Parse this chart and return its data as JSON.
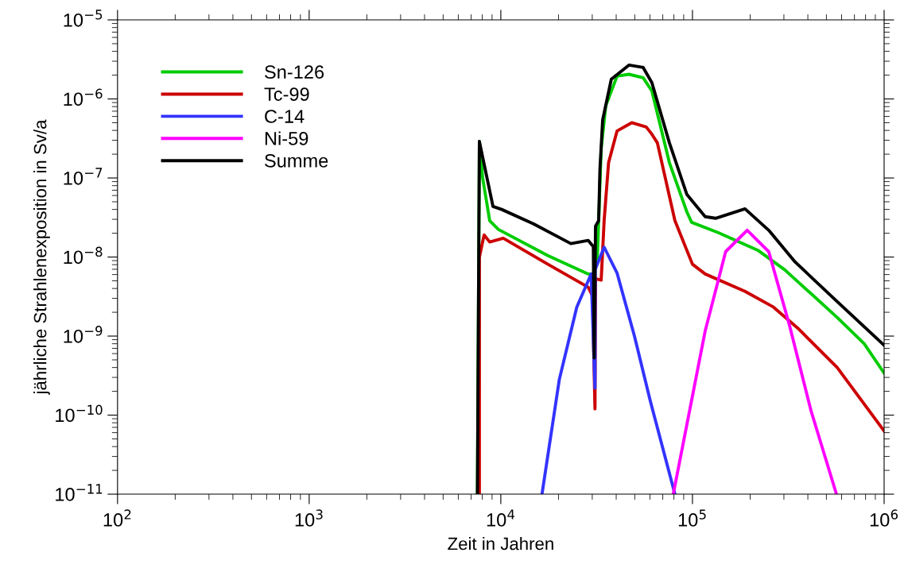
{
  "chart_data": {
    "type": "line",
    "xlabel": "Zeit in Jahren",
    "ylabel": "jährliche Strahlenexposition in Sv/a",
    "log": "xy",
    "grid": false,
    "legend": "top left",
    "marker": "none",
    "line_style": "solid",
    "xlim": [
      100,
      1000000
    ],
    "ylim": [
      1e-11,
      1e-05
    ],
    "xticks": [
      {
        "value": 100,
        "label": "10$^{2}$"
      },
      {
        "value": 1000,
        "label": "10$^{3}$"
      },
      {
        "value": 10000,
        "label": "10$^{4}$"
      },
      {
        "value": 100000,
        "label": "10$^{5}$"
      },
      {
        "value": 1000000,
        "label": "10$^{6}$"
      }
    ],
    "yticks": [
      {
        "value": 1e-11,
        "label": "10$^{−11}$"
      },
      {
        "value": 1e-10,
        "label": "10$^{−10}$"
      },
      {
        "value": 1e-09,
        "label": "10$^{−9}$"
      },
      {
        "value": 1e-08,
        "label": "10$^{−8}$"
      },
      {
        "value": 1e-07,
        "label": "10$^{−7}$"
      },
      {
        "value": 1e-06,
        "label": "10$^{−6}$"
      },
      {
        "value": 1e-05,
        "label": "10$^{−5}$"
      }
    ],
    "series": [
      {
        "name": "Sn-126",
        "color": "#00cc00",
        "x": [
          7550,
          7730,
          8040,
          8750,
          9720,
          17600,
          28600,
          30300,
          31800,
          32400,
          33400,
          35300,
          40400,
          46600,
          55300,
          61400,
          75800,
          93500,
          99000,
          136000,
          219000,
          303000,
          569000,
          787000,
          1000000
        ],
        "values": [
          1e-11,
          2.9e-07,
          1e-07,
          2.88e-08,
          2.23e-08,
          1.04e-08,
          6.1e-09,
          6.1e-09,
          8.5e-09,
          2.88e-08,
          2.36e-07,
          8.2e-07,
          1.94e-06,
          2.05e-06,
          1.85e-06,
          1.26e-06,
          1.56e-07,
          3.72e-08,
          2.75e-08,
          2.04e-08,
          1.22e-08,
          6.9e-09,
          1.72e-09,
          8e-10,
          3.4e-10
        ]
      },
      {
        "name": "Tc-99",
        "color": "#cc0000",
        "x": [
          7730,
          7731,
          8180,
          8750,
          10300,
          17600,
          28600,
          30100,
          31000,
          31200,
          33400,
          34600,
          36500,
          40400,
          48200,
          57400,
          61400,
          65600,
          81000,
          100000,
          116500,
          188000,
          265000,
          353000,
          569000,
          1000000
        ],
        "values": [
          1e-11,
          1e-08,
          1.9e-08,
          1.55e-08,
          1.73e-08,
          8.1e-09,
          4.14e-09,
          3.2e-09,
          1.2e-10,
          5.3e-09,
          5.1e-09,
          2.88e-08,
          1.56e-07,
          3.93e-07,
          5e-07,
          4.41e-07,
          3.58e-07,
          2.78e-07,
          2.88e-08,
          8.1e-09,
          6.1e-09,
          3.68e-09,
          2.32e-09,
          1.27e-09,
          4e-10,
          6.3e-11
        ]
      },
      {
        "name": "C-14",
        "color": "#3333ff",
        "x": [
          16400,
          20200,
          24900,
          29600,
          31000,
          31100,
          34600,
          40400,
          49800,
          60300,
          81000
        ],
        "values": [
          1e-11,
          2.83e-10,
          2.32e-09,
          6.1e-09,
          2.2e-10,
          7e-09,
          1.33e-08,
          6.3e-09,
          1e-09,
          1.5e-10,
          1e-11
        ]
      },
      {
        "name": "Ni-59",
        "color": "#ff00ff",
        "x": [
          79400,
          116500,
          149000,
          193000,
          250000,
          321000,
          415000,
          564000
        ],
        "values": [
          1e-11,
          1.16e-09,
          1.17e-08,
          2.18e-08,
          1.17e-08,
          1.36e-09,
          1.15e-10,
          1e-11
        ]
      },
      {
        "name": "Summe",
        "color": "#000000",
        "x": [
          7550,
          7730,
          9100,
          10100,
          14800,
          23200,
          28600,
          30400,
          30700,
          31200,
          32400,
          32900,
          34000,
          37700,
          46600,
          55300,
          61400,
          75800,
          93500,
          116500,
          132000,
          188000,
          250000,
          343000,
          569000,
          1000000
        ],
        "values": [
          1e-11,
          2.9e-07,
          4.37e-08,
          4e-08,
          2.63e-08,
          1.48e-08,
          1.62e-08,
          1.35e-08,
          5.3e-10,
          2.45e-08,
          2.88e-08,
          1.29e-07,
          5.43e-07,
          1.77e-06,
          2.68e-06,
          2.5e-06,
          1.61e-06,
          2.78e-07,
          6.18e-08,
          3.24e-08,
          3.09e-08,
          4.07e-08,
          2.18e-08,
          8.67e-09,
          2.73e-09,
          7.65e-10
        ]
      }
    ]
  }
}
